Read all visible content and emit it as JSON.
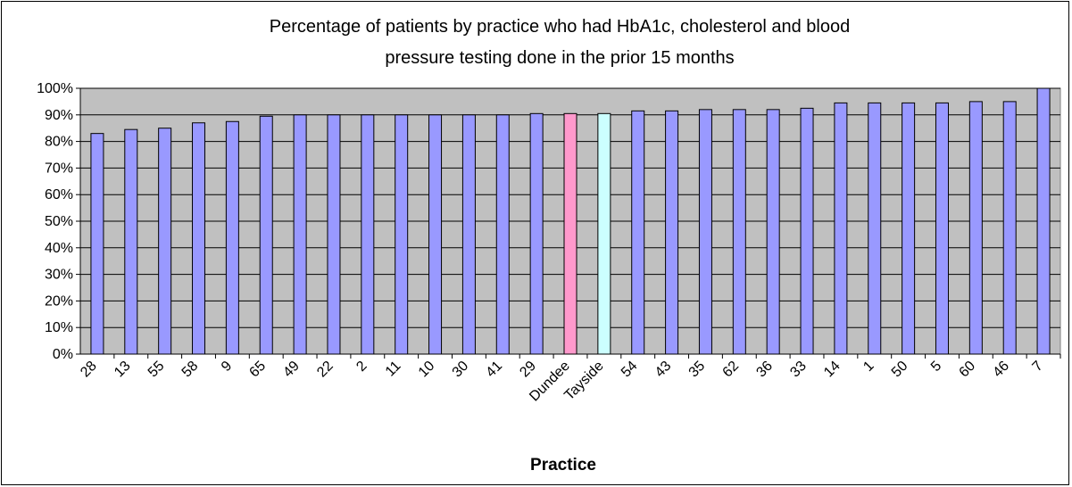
{
  "chart_data": {
    "type": "bar",
    "title_lines": [
      "Percentage of patients by practice who had HbA1c, cholesterol and blood",
      "pressure testing done in the prior 15 months"
    ],
    "xlabel": "Practice",
    "ylabel": "",
    "ylim": [
      0,
      100
    ],
    "y_ticks": [
      "0%",
      "10%",
      "20%",
      "30%",
      "40%",
      "50%",
      "60%",
      "70%",
      "80%",
      "90%",
      "100%"
    ],
    "grid": "horizontal",
    "categories": [
      "28",
      "13",
      "55",
      "58",
      "9",
      "65",
      "49",
      "22",
      "2",
      "11",
      "10",
      "30",
      "41",
      "29",
      "Dundee",
      "Tayside",
      "54",
      "43",
      "35",
      "62",
      "36",
      "33",
      "14",
      "1",
      "50",
      "5",
      "60",
      "46",
      "7"
    ],
    "values": [
      83,
      84.5,
      85,
      87,
      87.5,
      89.5,
      90,
      90,
      90,
      90,
      90,
      90,
      90,
      90.5,
      90.5,
      90.5,
      91.5,
      91.5,
      92,
      92,
      92,
      92.5,
      94.5,
      94.5,
      94.5,
      94.5,
      95,
      95,
      100
    ],
    "colors": {
      "default": "#9999ff",
      "Dundee": "#ff99cc",
      "Tayside": "#ccffff",
      "plot_background": "#c0c0c0"
    }
  }
}
